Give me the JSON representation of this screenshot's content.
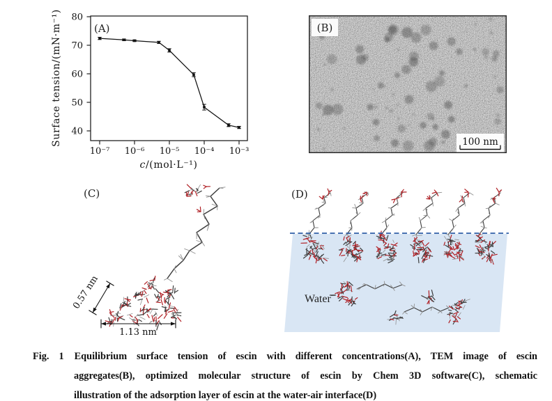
{
  "panels": {
    "a": {
      "label": "(A)"
    },
    "b": {
      "label": "(B)",
      "scale_bar_label": "100 nm"
    },
    "c": {
      "label": "(C)",
      "width_dim": "1.13 nm",
      "height_dim": "0.57 nm"
    },
    "d": {
      "label": "(D)",
      "water_label": "Water"
    }
  },
  "chart_data": {
    "type": "line",
    "title": "",
    "xlabel_italic": "c",
    "xlabel_rest": "/(mol·L⁻¹)",
    "ylabel": "Surface tension/(mN·m⁻¹)",
    "xscale": "log",
    "x": [
      1e-07,
      5e-07,
      1e-06,
      5e-06,
      1e-05,
      5e-05,
      0.0001,
      0.0005,
      0.001
    ],
    "y": [
      72.4,
      71.9,
      71.6,
      71.0,
      68.2,
      59.7,
      48.3,
      42.0,
      41.2
    ],
    "yerr": [
      0.4,
      0.3,
      0.3,
      0.4,
      0.6,
      0.7,
      1.0,
      0.5,
      0.4
    ],
    "xticks": [
      {
        "value": 1e-07,
        "label": "10⁻⁷"
      },
      {
        "value": 1e-06,
        "label": "10⁻⁶"
      },
      {
        "value": 1e-05,
        "label": "10⁻⁵"
      },
      {
        "value": 0.0001,
        "label": "10⁻⁴"
      },
      {
        "value": 0.001,
        "label": "10⁻³"
      }
    ],
    "yticks": [
      40,
      50,
      60,
      70,
      80
    ],
    "ylim": [
      36.5,
      80.3
    ],
    "xlim": [
      5.5e-08,
      0.0018
    ],
    "grid": false,
    "legend": "none",
    "line_color": "#111111",
    "marker": "square",
    "error_bars": true
  },
  "caption": {
    "tag": "Fig. 1",
    "lines": [
      "Equilibrium surface tension of escin with different concentrations(A), TEM image of escin",
      "aggregates(B), optimized molecular structure of escin by Chem 3D software(C), schematic",
      "illustration of the adsorption layer of escin at the water-air interface(D)"
    ]
  },
  "colors": {
    "water_fill": "#d9e6f4",
    "interface_line": "#2e5fa6",
    "molecule_carbon": "#3d3d3d",
    "molecule_oxygen": "#b01f24",
    "molecule_hydrogen": "#909090",
    "tem_base": "#8f8f8f"
  }
}
